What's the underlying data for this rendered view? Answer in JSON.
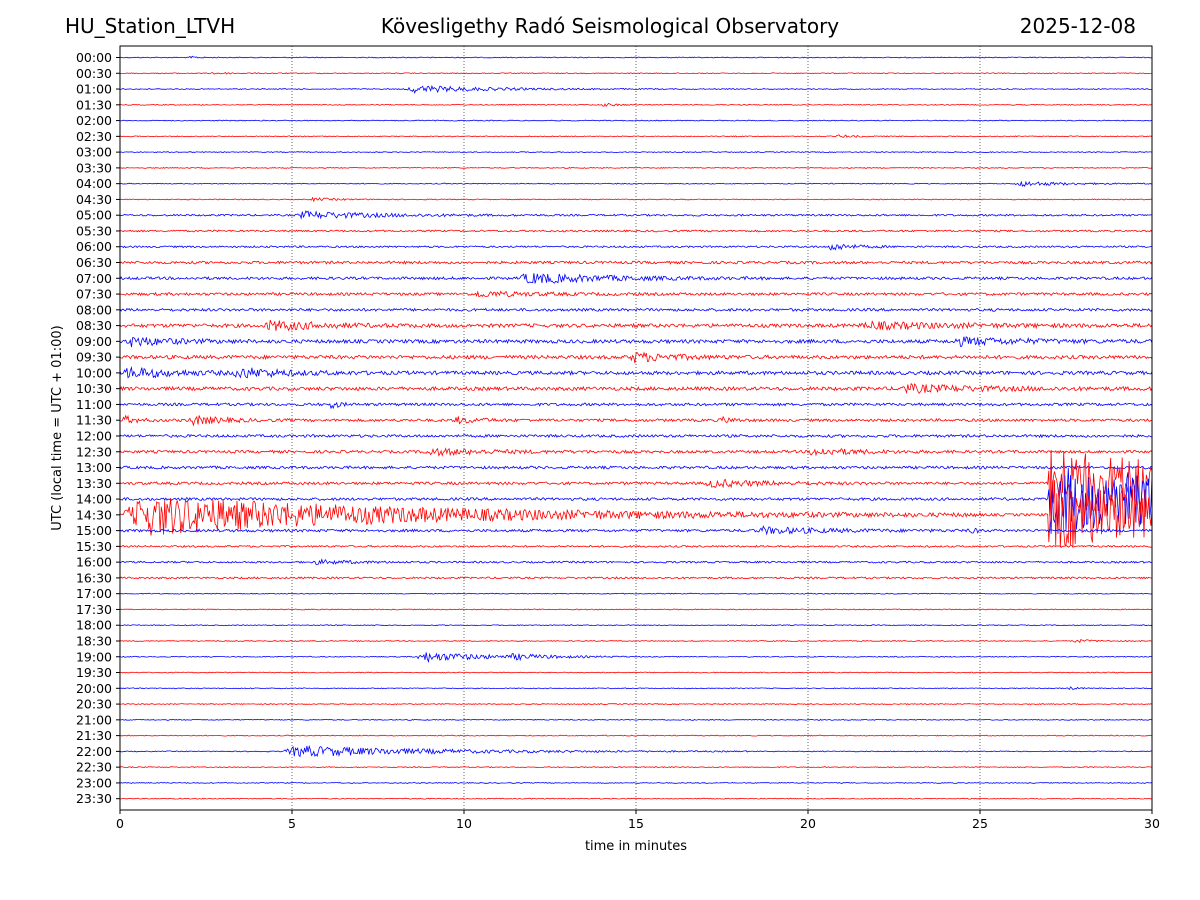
{
  "header": {
    "station": "HU_Station_LTVH",
    "title": "Kövesligethy Radó Seismological Observatory",
    "date": "2025-12-08"
  },
  "chart_data": {
    "type": "line",
    "title": "Kövesligethy Radó Seismological Observatory",
    "xlabel": "time in minutes",
    "ylabel": "UTC (local time = UTC + 01:00)",
    "xlim": [
      0,
      30
    ],
    "x_ticks": [
      0,
      5,
      10,
      15,
      20,
      25,
      30
    ],
    "x_tick_labels": [
      "0",
      "5",
      "10",
      "15",
      "20",
      "25",
      "30"
    ],
    "grid": "vertical dotted at x ticks",
    "colors": {
      "even_trace": "#0000ff",
      "odd_trace": "#ff0000"
    },
    "rows": [
      "00:00",
      "00:30",
      "01:00",
      "01:30",
      "02:00",
      "02:30",
      "03:00",
      "03:30",
      "04:00",
      "04:30",
      "05:00",
      "05:30",
      "06:00",
      "06:30",
      "07:00",
      "07:30",
      "08:00",
      "08:30",
      "09:00",
      "09:30",
      "10:00",
      "10:30",
      "11:00",
      "11:30",
      "12:00",
      "12:30",
      "13:00",
      "13:30",
      "14:00",
      "14:30",
      "15:00",
      "15:30",
      "16:00",
      "16:30",
      "17:00",
      "17:30",
      "18:00",
      "18:30",
      "19:00",
      "19:30",
      "20:00",
      "20:30",
      "21:00",
      "21:30",
      "22:00",
      "22:30",
      "23:00",
      "23:30"
    ],
    "noise_level": [
      1,
      1,
      1,
      1,
      1,
      1,
      1,
      1,
      1,
      1,
      2,
      2,
      2,
      3,
      3,
      3,
      3,
      4,
      4,
      4,
      4,
      4,
      3,
      3,
      3,
      3,
      3,
      3,
      3,
      3,
      3,
      2,
      2,
      2,
      1,
      1,
      1,
      1,
      1,
      1,
      1,
      1,
      1,
      1,
      1,
      1,
      1,
      1
    ],
    "events": [
      {
        "row": "00:00",
        "t": 2.0,
        "amp": 2,
        "dur": 0.4
      },
      {
        "row": "00:30",
        "t": 2.6,
        "amp": 1.5,
        "dur": 1.0
      },
      {
        "row": "01:00",
        "t": 8.3,
        "amp": 7,
        "dur": 3.0
      },
      {
        "row": "01:30",
        "t": 14.0,
        "amp": 3,
        "dur": 0.6
      },
      {
        "row": "02:30",
        "t": 20.8,
        "amp": 2.5,
        "dur": 0.8
      },
      {
        "row": "04:00",
        "t": 26.0,
        "amp": 5,
        "dur": 1.8
      },
      {
        "row": "04:30",
        "t": 5.5,
        "amp": 3,
        "dur": 1.0
      },
      {
        "row": "05:00",
        "t": 5.1,
        "amp": 7,
        "dur": 3.0
      },
      {
        "row": "06:00",
        "t": 20.6,
        "amp": 8,
        "dur": 0.8
      },
      {
        "row": "07:00",
        "t": 11.6,
        "amp": 10,
        "dur": 3.0
      },
      {
        "row": "07:30",
        "t": 10.2,
        "amp": 5,
        "dur": 2.2
      },
      {
        "row": "08:30",
        "t": 4.2,
        "amp": 9,
        "dur": 2.0
      },
      {
        "row": "08:30",
        "t": 21.5,
        "amp": 6,
        "dur": 3.5
      },
      {
        "row": "09:00",
        "t": 0.2,
        "amp": 9,
        "dur": 1.5
      },
      {
        "row": "09:00",
        "t": 24.2,
        "amp": 7,
        "dur": 2.5
      },
      {
        "row": "09:30",
        "t": 14.8,
        "amp": 9,
        "dur": 1.5
      },
      {
        "row": "10:00",
        "t": 0.1,
        "amp": 10,
        "dur": 1.8
      },
      {
        "row": "10:00",
        "t": 3.3,
        "amp": 9,
        "dur": 1.8
      },
      {
        "row": "10:30",
        "t": 22.6,
        "amp": 7,
        "dur": 3.0
      },
      {
        "row": "11:00",
        "t": 6.1,
        "amp": 8,
        "dur": 0.3
      },
      {
        "row": "11:30",
        "t": 0.05,
        "amp": 8,
        "dur": 0.5
      },
      {
        "row": "11:30",
        "t": 2.0,
        "amp": 9,
        "dur": 1.2
      },
      {
        "row": "11:30",
        "t": 9.7,
        "amp": 6,
        "dur": 0.9
      },
      {
        "row": "11:30",
        "t": 17.4,
        "amp": 6,
        "dur": 0.5
      },
      {
        "row": "12:30",
        "t": 8.8,
        "amp": 6,
        "dur": 2.5
      },
      {
        "row": "12:30",
        "t": 20.0,
        "amp": 7,
        "dur": 1.8
      },
      {
        "row": "13:30",
        "t": 17.0,
        "amp": 7,
        "dur": 2.2
      },
      {
        "row": "14:30",
        "t": 0.0,
        "amp": 40,
        "dur": 10.0
      },
      {
        "row": "15:00",
        "t": 18.5,
        "amp": 6,
        "dur": 2.5
      },
      {
        "row": "15:00",
        "t": 24.7,
        "amp": 8,
        "dur": 0.2
      },
      {
        "row": "16:00",
        "t": 5.6,
        "amp": 4,
        "dur": 1.5
      },
      {
        "row": "18:30",
        "t": 27.7,
        "amp": 3,
        "dur": 0.8
      },
      {
        "row": "19:00",
        "t": 8.6,
        "amp": 10,
        "dur": 2.5
      },
      {
        "row": "19:00",
        "t": 11.3,
        "amp": 4,
        "dur": 1.5
      },
      {
        "row": "20:00",
        "t": 27.5,
        "amp": 3,
        "dur": 0.4
      },
      {
        "row": "22:00",
        "t": 4.7,
        "amp": 11,
        "dur": 5.5
      }
    ],
    "large_event": {
      "rows": [
        "13:30",
        "14:00",
        "14:30"
      ],
      "t": 27.0,
      "amp": 70,
      "dur": 3.0
    }
  }
}
